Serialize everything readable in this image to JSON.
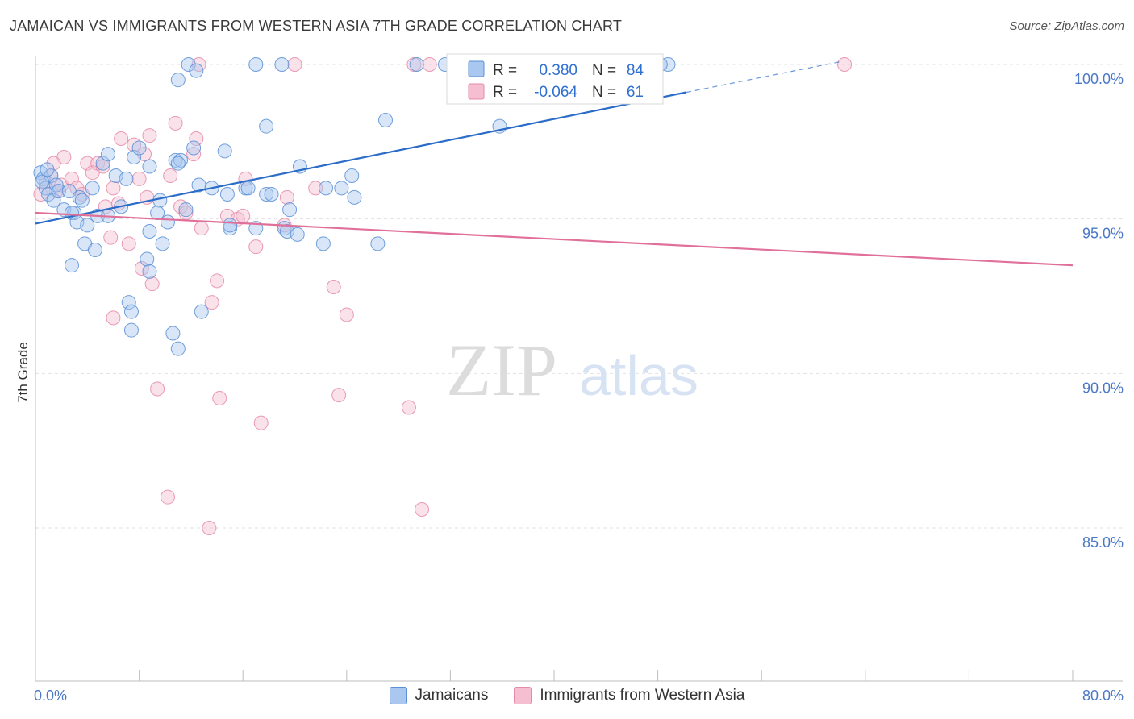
{
  "title": "JAMAICAN VS IMMIGRANTS FROM WESTERN ASIA 7TH GRADE CORRELATION CHART",
  "source": "Source: ZipAtlas.com",
  "watermark": {
    "zip": "ZIP",
    "atlas": "atlas"
  },
  "colors": {
    "blue_fill": "#a9c7ef",
    "blue_stroke": "#5b8fd6",
    "blue_line": "#2b6cc9",
    "pink_fill": "#f5bfd1",
    "pink_stroke": "#e68aa9",
    "pink_line": "#e0709a",
    "value_text": "#2f6fd1"
  },
  "legend": {
    "r_label": "R =",
    "n_label": "N =",
    "rows": [
      {
        "r": "0.380",
        "n": "84"
      },
      {
        "r": "-0.064",
        "n": "61"
      }
    ]
  },
  "bottom_legend": [
    "Jamaicans",
    "Immigrants from Western Asia"
  ],
  "chart_data": {
    "type": "scatter",
    "title": "JAMAICAN VS IMMIGRANTS FROM WESTERN ASIA 7TH GRADE CORRELATION CHART",
    "xlabel": "",
    "ylabel": "7th Grade",
    "xlim": [
      0,
      80
    ],
    "ylim": [
      80.5,
      101
    ],
    "x_tick_labels": [
      "0.0%",
      "80.0%"
    ],
    "y_ticks": [
      85,
      90,
      95,
      100
    ],
    "y_tick_labels": [
      "85.0%",
      "90.0%",
      "95.0%",
      "100.0%"
    ],
    "grid": true,
    "legend_position": "top-center",
    "series": [
      {
        "name": "Jamaicans",
        "r": 0.38,
        "n": 84,
        "trend": {
          "x0": 0,
          "y0": 94.85,
          "x1": 50.2,
          "y1": 99.1,
          "dash_to_x": 62.2,
          "dash_to_y": 100.1
        },
        "points": [
          [
            0.4,
            96.5
          ],
          [
            0.6,
            96.3
          ],
          [
            0.8,
            96.0
          ],
          [
            1.0,
            95.8
          ],
          [
            1.2,
            96.4
          ],
          [
            1.4,
            95.6
          ],
          [
            1.6,
            96.1
          ],
          [
            1.8,
            95.9
          ],
          [
            0.5,
            96.2
          ],
          [
            0.9,
            96.6
          ],
          [
            2.2,
            95.3
          ],
          [
            2.6,
            95.9
          ],
          [
            3.0,
            95.2
          ],
          [
            3.4,
            95.7
          ],
          [
            2.8,
            95.2
          ],
          [
            3.2,
            94.9
          ],
          [
            4.0,
            94.8
          ],
          [
            4.4,
            96.0
          ],
          [
            4.8,
            95.1
          ],
          [
            5.2,
            96.8
          ],
          [
            5.6,
            97.1
          ],
          [
            6.2,
            96.4
          ],
          [
            6.6,
            95.4
          ],
          [
            7.0,
            96.3
          ],
          [
            7.6,
            97.0
          ],
          [
            8.0,
            97.3
          ],
          [
            8.8,
            96.7
          ],
          [
            9.6,
            95.6
          ],
          [
            10.2,
            94.9
          ],
          [
            10.8,
            96.9
          ],
          [
            11.2,
            96.9
          ],
          [
            11.6,
            95.3
          ],
          [
            12.2,
            97.3
          ],
          [
            12.6,
            96.1
          ],
          [
            13.6,
            96.0
          ],
          [
            14.6,
            97.2
          ],
          [
            15.0,
            94.7
          ],
          [
            16.2,
            96.0
          ],
          [
            17.0,
            94.7
          ],
          [
            17.8,
            95.8
          ],
          [
            18.2,
            95.8
          ],
          [
            19.2,
            94.7
          ],
          [
            19.6,
            95.3
          ],
          [
            20.4,
            96.7
          ],
          [
            22.2,
            94.2
          ],
          [
            23.6,
            96.0
          ],
          [
            24.6,
            95.7
          ],
          [
            24.4,
            96.4
          ],
          [
            26.4,
            94.2
          ],
          [
            27.0,
            98.2
          ],
          [
            29.4,
            100.0
          ],
          [
            31.6,
            100.0
          ],
          [
            35.8,
            98.0
          ],
          [
            48.8,
            100.0
          ],
          [
            48.2,
            100.0
          ],
          [
            11.8,
            100.0
          ],
          [
            12.4,
            99.8
          ],
          [
            11.0,
            99.5
          ],
          [
            17.8,
            98.0
          ],
          [
            19.0,
            100.0
          ],
          [
            17.0,
            100.0
          ],
          [
            2.8,
            93.5
          ],
          [
            3.8,
            94.2
          ],
          [
            4.6,
            94.0
          ],
          [
            7.2,
            92.3
          ],
          [
            7.4,
            92.0
          ],
          [
            7.4,
            91.4
          ],
          [
            8.8,
            94.6
          ],
          [
            8.6,
            93.7
          ],
          [
            8.8,
            93.3
          ],
          [
            9.4,
            95.2
          ],
          [
            9.8,
            94.2
          ],
          [
            10.6,
            91.3
          ],
          [
            11.0,
            90.8
          ],
          [
            12.8,
            92.0
          ],
          [
            14.8,
            95.8
          ],
          [
            15.0,
            94.8
          ],
          [
            19.4,
            94.6
          ],
          [
            16.4,
            96.0
          ],
          [
            20.2,
            94.5
          ],
          [
            11.0,
            96.8
          ],
          [
            5.6,
            95.1
          ],
          [
            3.6,
            95.6
          ],
          [
            22.4,
            96.0
          ]
        ]
      },
      {
        "name": "Immigrants from Western Asia",
        "r": -0.064,
        "n": 61,
        "trend": {
          "x0": 0,
          "y0": 95.2,
          "x1": 80,
          "y1": 93.5
        },
        "points": [
          [
            0.4,
            95.8
          ],
          [
            0.8,
            96.2
          ],
          [
            1.2,
            96.4
          ],
          [
            1.6,
            95.9
          ],
          [
            2.0,
            96.1
          ],
          [
            2.2,
            97.0
          ],
          [
            1.4,
            96.8
          ],
          [
            2.8,
            96.3
          ],
          [
            3.2,
            96.0
          ],
          [
            3.6,
            95.8
          ],
          [
            4.0,
            96.8
          ],
          [
            4.4,
            96.5
          ],
          [
            4.8,
            96.8
          ],
          [
            5.2,
            96.7
          ],
          [
            5.4,
            95.4
          ],
          [
            5.8,
            94.4
          ],
          [
            6.0,
            96.0
          ],
          [
            6.4,
            95.5
          ],
          [
            6.6,
            97.6
          ],
          [
            7.2,
            94.2
          ],
          [
            7.6,
            97.4
          ],
          [
            8.0,
            96.3
          ],
          [
            8.2,
            93.4
          ],
          [
            8.4,
            97.1
          ],
          [
            8.6,
            95.7
          ],
          [
            8.8,
            97.7
          ],
          [
            9.0,
            92.9
          ],
          [
            9.4,
            89.5
          ],
          [
            10.4,
            96.4
          ],
          [
            10.8,
            98.1
          ],
          [
            11.2,
            95.4
          ],
          [
            11.6,
            95.2
          ],
          [
            12.2,
            97.1
          ],
          [
            12.4,
            97.6
          ],
          [
            12.8,
            94.7
          ],
          [
            13.6,
            92.3
          ],
          [
            14.0,
            93.0
          ],
          [
            14.2,
            89.2
          ],
          [
            14.8,
            95.1
          ],
          [
            15.6,
            95.0
          ],
          [
            16.0,
            95.1
          ],
          [
            16.2,
            96.3
          ],
          [
            17.0,
            94.1
          ],
          [
            17.4,
            88.4
          ],
          [
            19.2,
            94.8
          ],
          [
            19.4,
            95.7
          ],
          [
            20.0,
            100.0
          ],
          [
            21.6,
            96.0
          ],
          [
            23.0,
            92.8
          ],
          [
            23.4,
            89.3
          ],
          [
            24.0,
            91.9
          ],
          [
            28.8,
            88.9
          ],
          [
            29.2,
            100.0
          ],
          [
            30.4,
            100.0
          ],
          [
            35.8,
            100.0
          ],
          [
            10.2,
            86.0
          ],
          [
            13.4,
            85.0
          ],
          [
            29.8,
            85.6
          ],
          [
            62.4,
            100.0
          ],
          [
            12.6,
            100.0
          ],
          [
            6.0,
            91.8
          ]
        ]
      }
    ]
  }
}
